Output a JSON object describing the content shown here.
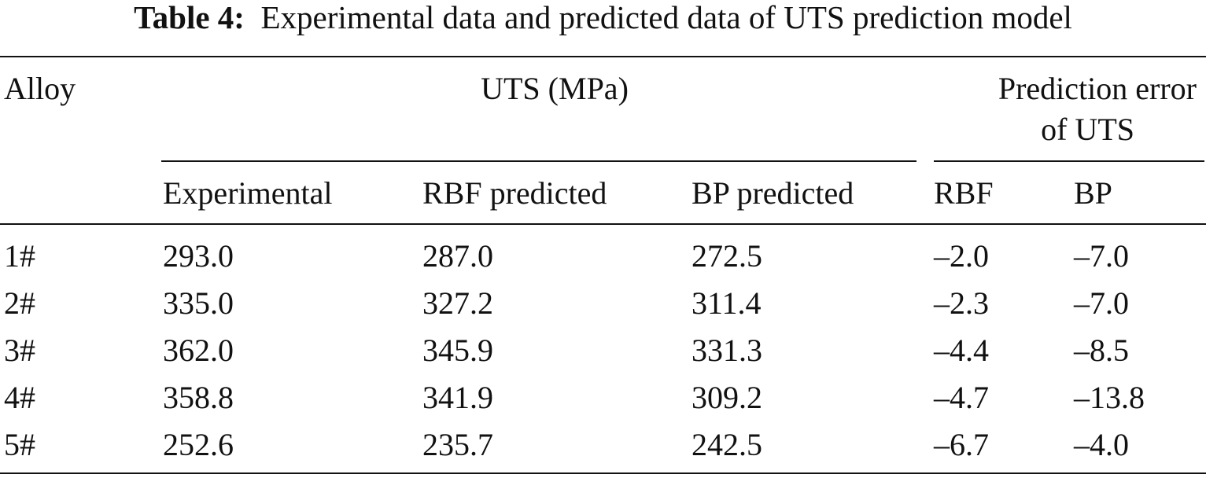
{
  "title": {
    "label": "Table 4:",
    "text": "Experimental data and predicted data of UTS prediction model"
  },
  "table": {
    "header": {
      "alloy": "Alloy",
      "uts": "UTS (MPa)",
      "error": [
        "Prediction error",
        "of UTS"
      ],
      "columns": [
        "Experimental",
        "RBF predicted",
        "BP predicted",
        "RBF",
        "BP"
      ]
    },
    "rows": [
      [
        "1#",
        "293.0",
        "287.0",
        "272.5",
        "–2.0",
        "–7.0"
      ],
      [
        "2#",
        "335.0",
        "327.2",
        "311.4",
        "–2.3",
        "–7.0"
      ],
      [
        "3#",
        "362.0",
        "345.9",
        "331.3",
        "–4.4",
        "–8.5"
      ],
      [
        "4#",
        "358.8",
        "341.9",
        "309.2",
        "–4.7",
        "–13.8"
      ],
      [
        "5#",
        "252.6",
        "235.7",
        "242.5",
        "–6.7",
        "–4.0"
      ]
    ]
  }
}
